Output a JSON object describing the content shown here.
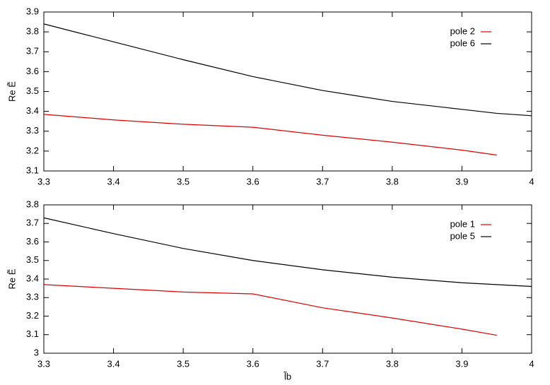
{
  "chart_data": [
    {
      "type": "line",
      "y_label": "Re Ẽ",
      "x": [
        3.3,
        3.4,
        3.5,
        3.6,
        3.7,
        3.8,
        3.9,
        3.95,
        4.0
      ],
      "series": [
        {
          "name": "pole 2",
          "color": "#e00000",
          "values": [
            3.385,
            3.357,
            3.335,
            3.32,
            3.28,
            3.245,
            3.205,
            3.18,
            null
          ]
        },
        {
          "name": "pole 6",
          "color": "#000000",
          "values": [
            3.84,
            3.75,
            3.66,
            3.575,
            3.505,
            3.45,
            3.41,
            3.39,
            3.378
          ]
        }
      ],
      "xlim": [
        3.3,
        4
      ],
      "xticks": [
        3.3,
        3.4,
        3.5,
        3.6,
        3.7,
        3.8,
        3.9,
        4
      ],
      "ylim": [
        3.1,
        3.9
      ],
      "yticks": [
        3.1,
        3.2,
        3.3,
        3.4,
        3.5,
        3.6,
        3.7,
        3.8,
        3.9
      ],
      "legend": "upper right"
    },
    {
      "type": "line",
      "y_label": "Re Ẽ",
      "x_label": "l̃b",
      "x": [
        3.3,
        3.4,
        3.5,
        3.6,
        3.7,
        3.8,
        3.9,
        3.95,
        4.0
      ],
      "series": [
        {
          "name": "pole 1",
          "color": "#e00000",
          "values": [
            3.37,
            3.35,
            3.33,
            3.32,
            3.245,
            3.19,
            3.13,
            3.097,
            null
          ]
        },
        {
          "name": "pole 5",
          "color": "#000000",
          "values": [
            3.73,
            3.645,
            3.565,
            3.5,
            3.45,
            3.41,
            3.38,
            3.37,
            3.36
          ]
        }
      ],
      "xlim": [
        3.3,
        4
      ],
      "xticks": [
        3.3,
        3.4,
        3.5,
        3.6,
        3.7,
        3.8,
        3.9,
        4
      ],
      "ylim": [
        3,
        3.8
      ],
      "yticks": [
        3,
        3.1,
        3.2,
        3.3,
        3.4,
        3.5,
        3.6,
        3.7,
        3.8
      ],
      "legend": "upper right"
    }
  ]
}
